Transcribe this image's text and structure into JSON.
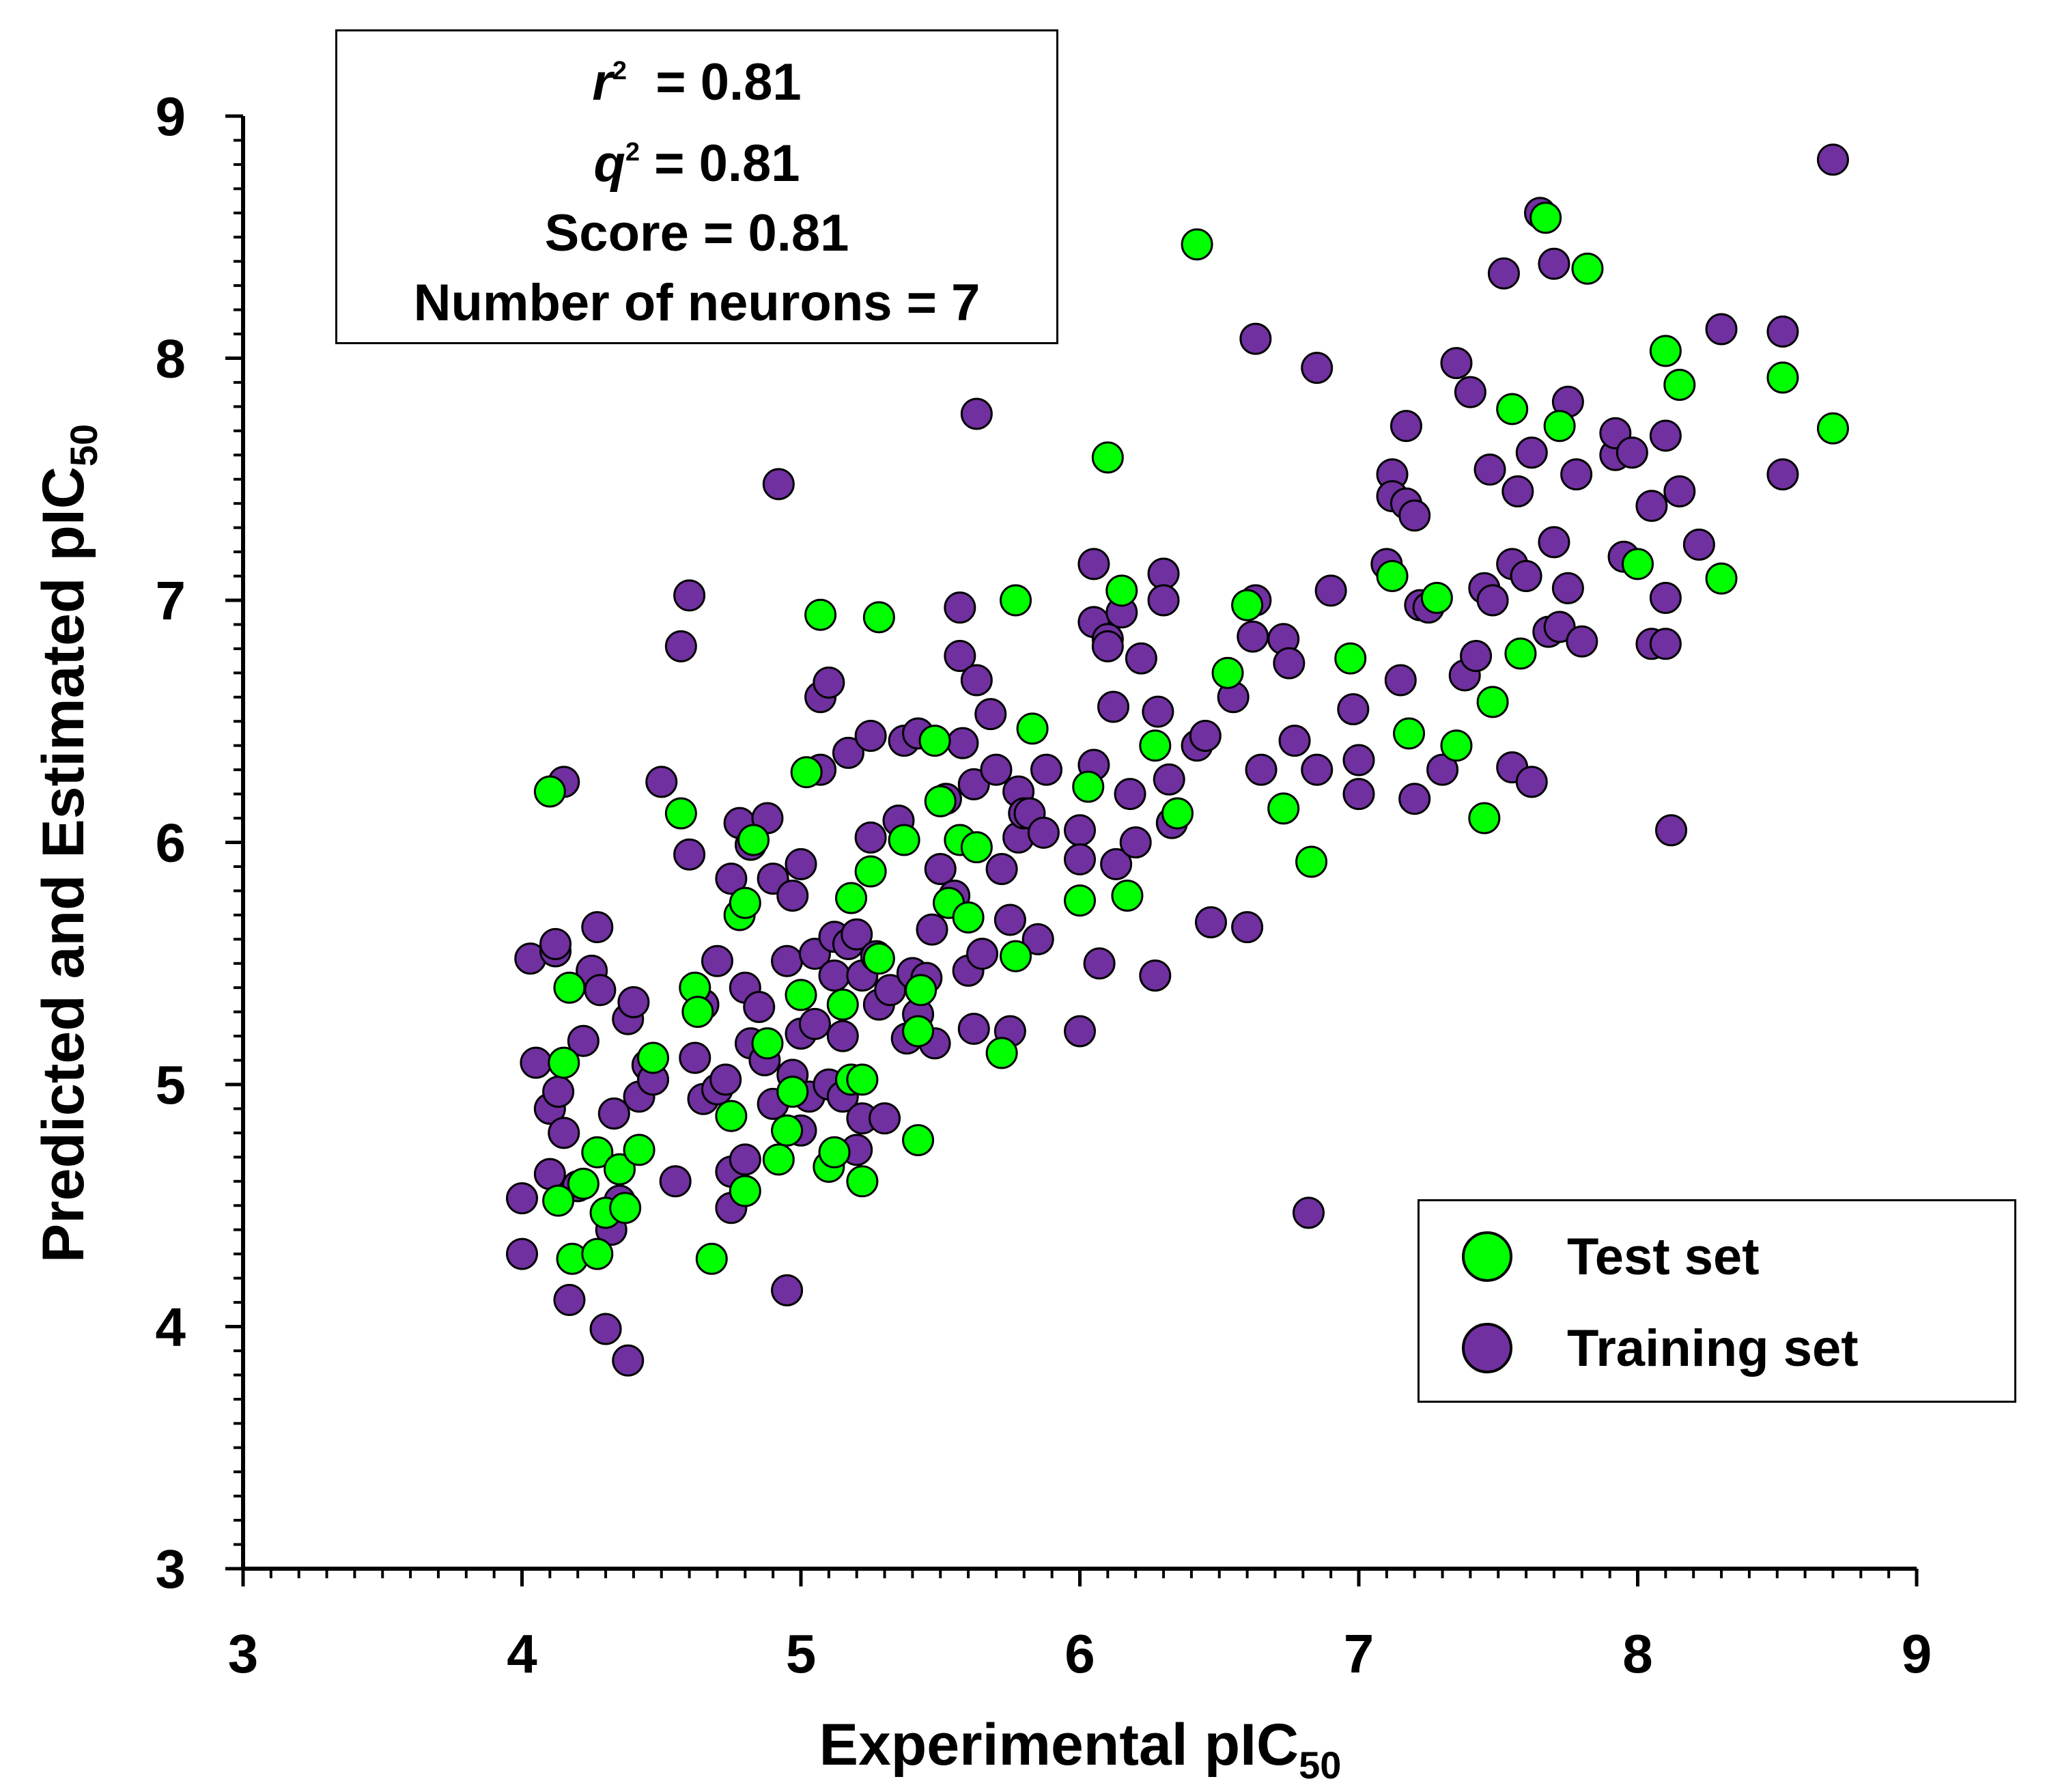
{
  "colors": {
    "test": "#00ff00",
    "train": "#7030a0",
    "axis": "#000000"
  },
  "stats": [
    {
      "symbol": "r",
      "sup": "2",
      "value": "  = 0.81"
    },
    {
      "symbol": "q",
      "sup": "2",
      "value": " = 0.81"
    },
    {
      "symbol": "",
      "sup": "",
      "value": "Score = 0.81"
    },
    {
      "symbol": "",
      "sup": "",
      "value": "Number of neurons = 7"
    }
  ],
  "legend": {
    "test_label": "Test set",
    "train_label": "Training set"
  },
  "chart_data": {
    "type": "scatter",
    "xlabel": "Experimental pIC",
    "xlabel_sub": "50",
    "ylabel": "Predicted and Estimated pIC",
    "ylabel_sub": "50",
    "xlim": [
      3,
      9
    ],
    "ylim": [
      3,
      9
    ],
    "xticks": [
      "3",
      "4",
      "5",
      "6",
      "7",
      "8",
      "9"
    ],
    "yticks": [
      "3",
      "4",
      "5",
      "6",
      "7",
      "8",
      "9"
    ],
    "minor_step": 0.1,
    "legend_position": "bottom-right",
    "series": [
      {
        "name": "Training set",
        "points": [
          [
            4.0,
            4.3
          ],
          [
            4.0,
            4.53
          ],
          [
            4.03,
            5.52
          ],
          [
            4.05,
            5.09
          ],
          [
            4.1,
            4.63
          ],
          [
            4.1,
            4.9
          ],
          [
            4.12,
            5.55
          ],
          [
            4.12,
            5.58
          ],
          [
            4.13,
            4.97
          ],
          [
            4.15,
            6.25
          ],
          [
            4.15,
            4.8
          ],
          [
            4.17,
            4.11
          ],
          [
            4.2,
            4.58
          ],
          [
            4.22,
            5.18
          ],
          [
            4.25,
            5.47
          ],
          [
            4.27,
            5.65
          ],
          [
            4.28,
            5.39
          ],
          [
            4.3,
            3.99
          ],
          [
            4.32,
            4.4
          ],
          [
            4.33,
            4.88
          ],
          [
            4.35,
            4.52
          ],
          [
            4.38,
            3.86
          ],
          [
            4.38,
            5.27
          ],
          [
            4.4,
            5.34
          ],
          [
            4.42,
            4.95
          ],
          [
            4.45,
            5.08
          ],
          [
            4.47,
            5.02
          ],
          [
            4.5,
            6.25
          ],
          [
            4.55,
            4.6
          ],
          [
            4.57,
            6.81
          ],
          [
            4.6,
            7.02
          ],
          [
            4.6,
            5.95
          ],
          [
            4.62,
            5.11
          ],
          [
            4.65,
            5.33
          ],
          [
            4.65,
            4.94
          ],
          [
            4.7,
            4.98
          ],
          [
            4.7,
            5.51
          ],
          [
            4.73,
            5.02
          ],
          [
            4.75,
            4.64
          ],
          [
            4.75,
            4.49
          ],
          [
            4.75,
            5.85
          ],
          [
            4.78,
            6.08
          ],
          [
            4.8,
            5.4
          ],
          [
            4.8,
            4.69
          ],
          [
            4.82,
            5.17
          ],
          [
            4.82,
            5.99
          ],
          [
            4.85,
            5.32
          ],
          [
            4.87,
            5.1
          ],
          [
            4.88,
            6.1
          ],
          [
            4.9,
            5.85
          ],
          [
            4.9,
            4.92
          ],
          [
            4.92,
            7.48
          ],
          [
            4.95,
            4.15
          ],
          [
            4.95,
            5.51
          ],
          [
            4.97,
            5.04
          ],
          [
            4.97,
            5.78
          ],
          [
            5.0,
            5.91
          ],
          [
            5.0,
            4.81
          ],
          [
            5.0,
            5.21
          ],
          [
            5.03,
            4.95
          ],
          [
            5.05,
            5.25
          ],
          [
            5.05,
            5.54
          ],
          [
            5.07,
            6.6
          ],
          [
            5.07,
            6.3
          ],
          [
            5.1,
            6.66
          ],
          [
            5.1,
            5.0
          ],
          [
            5.12,
            5.61
          ],
          [
            5.12,
            5.45
          ],
          [
            5.15,
            5.2
          ],
          [
            5.15,
            4.95
          ],
          [
            5.17,
            6.37
          ],
          [
            5.17,
            5.58
          ],
          [
            5.2,
            4.73
          ],
          [
            5.2,
            5.62
          ],
          [
            5.22,
            5.45
          ],
          [
            5.22,
            4.86
          ],
          [
            5.25,
            6.02
          ],
          [
            5.25,
            6.44
          ],
          [
            5.27,
            5.53
          ],
          [
            5.28,
            5.33
          ],
          [
            5.3,
            4.86
          ],
          [
            5.32,
            5.39
          ],
          [
            5.35,
            6.09
          ],
          [
            5.37,
            6.42
          ],
          [
            5.38,
            5.19
          ],
          [
            5.4,
            5.46
          ],
          [
            5.42,
            6.45
          ],
          [
            5.42,
            5.29
          ],
          [
            5.45,
            5.44
          ],
          [
            5.47,
            5.64
          ],
          [
            5.48,
            5.17
          ],
          [
            5.5,
            5.89
          ],
          [
            5.52,
            6.18
          ],
          [
            5.55,
            5.78
          ],
          [
            5.57,
            6.97
          ],
          [
            5.57,
            6.77
          ],
          [
            5.58,
            6.41
          ],
          [
            5.6,
            5.47
          ],
          [
            5.62,
            6.24
          ],
          [
            5.62,
            5.23
          ],
          [
            5.63,
            7.77
          ],
          [
            5.63,
            6.67
          ],
          [
            5.65,
            5.54
          ],
          [
            5.68,
            6.53
          ],
          [
            5.7,
            6.3
          ],
          [
            5.72,
            5.89
          ],
          [
            5.75,
            5.22
          ],
          [
            5.75,
            5.68
          ],
          [
            5.78,
            6.21
          ],
          [
            5.78,
            6.02
          ],
          [
            5.8,
            6.12
          ],
          [
            5.82,
            6.12
          ],
          [
            5.85,
            5.6
          ],
          [
            5.87,
            6.04
          ],
          [
            5.88,
            6.3
          ],
          [
            6.0,
            5.22
          ],
          [
            6.0,
            6.05
          ],
          [
            6.0,
            5.93
          ],
          [
            6.05,
            6.32
          ],
          [
            6.05,
            6.91
          ],
          [
            6.05,
            7.15
          ],
          [
            6.07,
            5.5
          ],
          [
            6.1,
            6.84
          ],
          [
            6.1,
            6.81
          ],
          [
            6.12,
            6.56
          ],
          [
            6.13,
            5.91
          ],
          [
            6.15,
            6.95
          ],
          [
            6.18,
            6.2
          ],
          [
            6.2,
            6.0
          ],
          [
            6.22,
            6.76
          ],
          [
            6.27,
            5.45
          ],
          [
            6.28,
            6.54
          ],
          [
            6.3,
            7.11
          ],
          [
            6.3,
            7.0
          ],
          [
            6.32,
            6.26
          ],
          [
            6.33,
            6.08
          ],
          [
            6.42,
            6.4
          ],
          [
            6.45,
            6.44
          ],
          [
            6.47,
            5.67
          ],
          [
            6.55,
            6.6
          ],
          [
            6.6,
            5.65
          ],
          [
            6.62,
            6.85
          ],
          [
            6.63,
            7.0
          ],
          [
            6.63,
            8.08
          ],
          [
            6.65,
            6.3
          ],
          [
            6.73,
            6.84
          ],
          [
            6.75,
            6.74
          ],
          [
            6.77,
            6.42
          ],
          [
            6.82,
            4.47
          ],
          [
            6.85,
            6.3
          ],
          [
            6.85,
            7.96
          ],
          [
            6.9,
            7.04
          ],
          [
            6.98,
            6.55
          ],
          [
            7.0,
            6.34
          ],
          [
            7.0,
            6.2
          ],
          [
            7.1,
            7.15
          ],
          [
            7.12,
            7.52
          ],
          [
            7.12,
            7.43
          ],
          [
            7.15,
            6.67
          ],
          [
            7.17,
            7.4
          ],
          [
            7.17,
            7.72
          ],
          [
            7.2,
            7.35
          ],
          [
            7.2,
            6.18
          ],
          [
            7.22,
            6.98
          ],
          [
            7.25,
            6.97
          ],
          [
            7.3,
            6.3
          ],
          [
            7.35,
            7.98
          ],
          [
            7.38,
            6.69
          ],
          [
            7.4,
            7.86
          ],
          [
            7.42,
            6.77
          ],
          [
            7.45,
            7.05
          ],
          [
            7.47,
            7.54
          ],
          [
            7.48,
            7.0
          ],
          [
            7.52,
            8.35
          ],
          [
            7.55,
            7.15
          ],
          [
            7.55,
            6.31
          ],
          [
            7.57,
            7.45
          ],
          [
            7.6,
            7.1
          ],
          [
            7.62,
            7.61
          ],
          [
            7.62,
            6.25
          ],
          [
            7.65,
            8.6
          ],
          [
            7.68,
            6.87
          ],
          [
            7.7,
            7.24
          ],
          [
            7.7,
            8.39
          ],
          [
            7.72,
            6.89
          ],
          [
            7.75,
            7.82
          ],
          [
            7.75,
            7.05
          ],
          [
            7.78,
            7.52
          ],
          [
            7.8,
            6.83
          ],
          [
            7.92,
            7.6
          ],
          [
            7.92,
            7.69
          ],
          [
            7.95,
            7.18
          ],
          [
            7.98,
            7.61
          ],
          [
            8.05,
            7.39
          ],
          [
            8.05,
            6.82
          ],
          [
            8.1,
            6.82
          ],
          [
            8.1,
            7.01
          ],
          [
            8.1,
            7.68
          ],
          [
            8.12,
            6.05
          ],
          [
            8.15,
            7.45
          ],
          [
            8.22,
            7.23
          ],
          [
            8.3,
            8.12
          ],
          [
            8.52,
            7.52
          ],
          [
            8.52,
            8.11
          ],
          [
            8.7,
            8.82
          ]
        ]
      },
      {
        "name": "Test set",
        "points": [
          [
            4.1,
            6.21
          ],
          [
            4.13,
            4.52
          ],
          [
            4.15,
            5.09
          ],
          [
            4.17,
            5.4
          ],
          [
            4.18,
            4.28
          ],
          [
            4.22,
            4.59
          ],
          [
            4.27,
            4.72
          ],
          [
            4.27,
            4.3
          ],
          [
            4.3,
            4.47
          ],
          [
            4.35,
            4.65
          ],
          [
            4.37,
            4.49
          ],
          [
            4.42,
            4.73
          ],
          [
            4.47,
            5.11
          ],
          [
            4.57,
            6.12
          ],
          [
            4.62,
            5.4
          ],
          [
            4.63,
            5.3
          ],
          [
            4.68,
            4.28
          ],
          [
            4.75,
            4.87
          ],
          [
            4.78,
            5.7
          ],
          [
            4.8,
            5.75
          ],
          [
            4.8,
            4.56
          ],
          [
            4.83,
            6.01
          ],
          [
            4.88,
            5.17
          ],
          [
            4.92,
            4.69
          ],
          [
            4.95,
            4.81
          ],
          [
            4.97,
            4.97
          ],
          [
            5.0,
            5.37
          ],
          [
            5.02,
            6.29
          ],
          [
            5.07,
            6.94
          ],
          [
            5.1,
            4.66
          ],
          [
            5.12,
            4.72
          ],
          [
            5.15,
            5.33
          ],
          [
            5.18,
            5.77
          ],
          [
            5.18,
            5.02
          ],
          [
            5.22,
            4.6
          ],
          [
            5.22,
            5.02
          ],
          [
            5.25,
            5.88
          ],
          [
            5.28,
            5.52
          ],
          [
            5.28,
            6.93
          ],
          [
            5.37,
            6.01
          ],
          [
            5.42,
            4.77
          ],
          [
            5.42,
            5.22
          ],
          [
            5.43,
            5.39
          ],
          [
            5.48,
            6.42
          ],
          [
            5.5,
            6.17
          ],
          [
            5.53,
            5.75
          ],
          [
            5.57,
            6.01
          ],
          [
            5.6,
            5.69
          ],
          [
            5.63,
            5.98
          ],
          [
            5.72,
            5.13
          ],
          [
            5.77,
            7.0
          ],
          [
            5.77,
            5.53
          ],
          [
            5.83,
            6.47
          ],
          [
            6.0,
            5.76
          ],
          [
            6.03,
            6.23
          ],
          [
            6.1,
            7.59
          ],
          [
            6.15,
            7.04
          ],
          [
            6.17,
            5.78
          ],
          [
            6.27,
            6.4
          ],
          [
            6.35,
            6.12
          ],
          [
            6.42,
            8.47
          ],
          [
            6.53,
            6.7
          ],
          [
            6.6,
            6.98
          ],
          [
            6.73,
            6.14
          ],
          [
            6.83,
            5.92
          ],
          [
            6.97,
            6.76
          ],
          [
            7.12,
            7.1
          ],
          [
            7.18,
            6.45
          ],
          [
            7.28,
            7.01
          ],
          [
            7.35,
            6.4
          ],
          [
            7.45,
            6.1
          ],
          [
            7.48,
            6.58
          ],
          [
            7.55,
            7.79
          ],
          [
            7.58,
            6.78
          ],
          [
            7.67,
            8.58
          ],
          [
            7.72,
            7.72
          ],
          [
            7.82,
            8.37
          ],
          [
            8.0,
            7.15
          ],
          [
            8.1,
            8.03
          ],
          [
            8.15,
            7.89
          ],
          [
            8.3,
            7.09
          ],
          [
            8.52,
            7.92
          ],
          [
            8.7,
            7.71
          ]
        ]
      }
    ]
  }
}
